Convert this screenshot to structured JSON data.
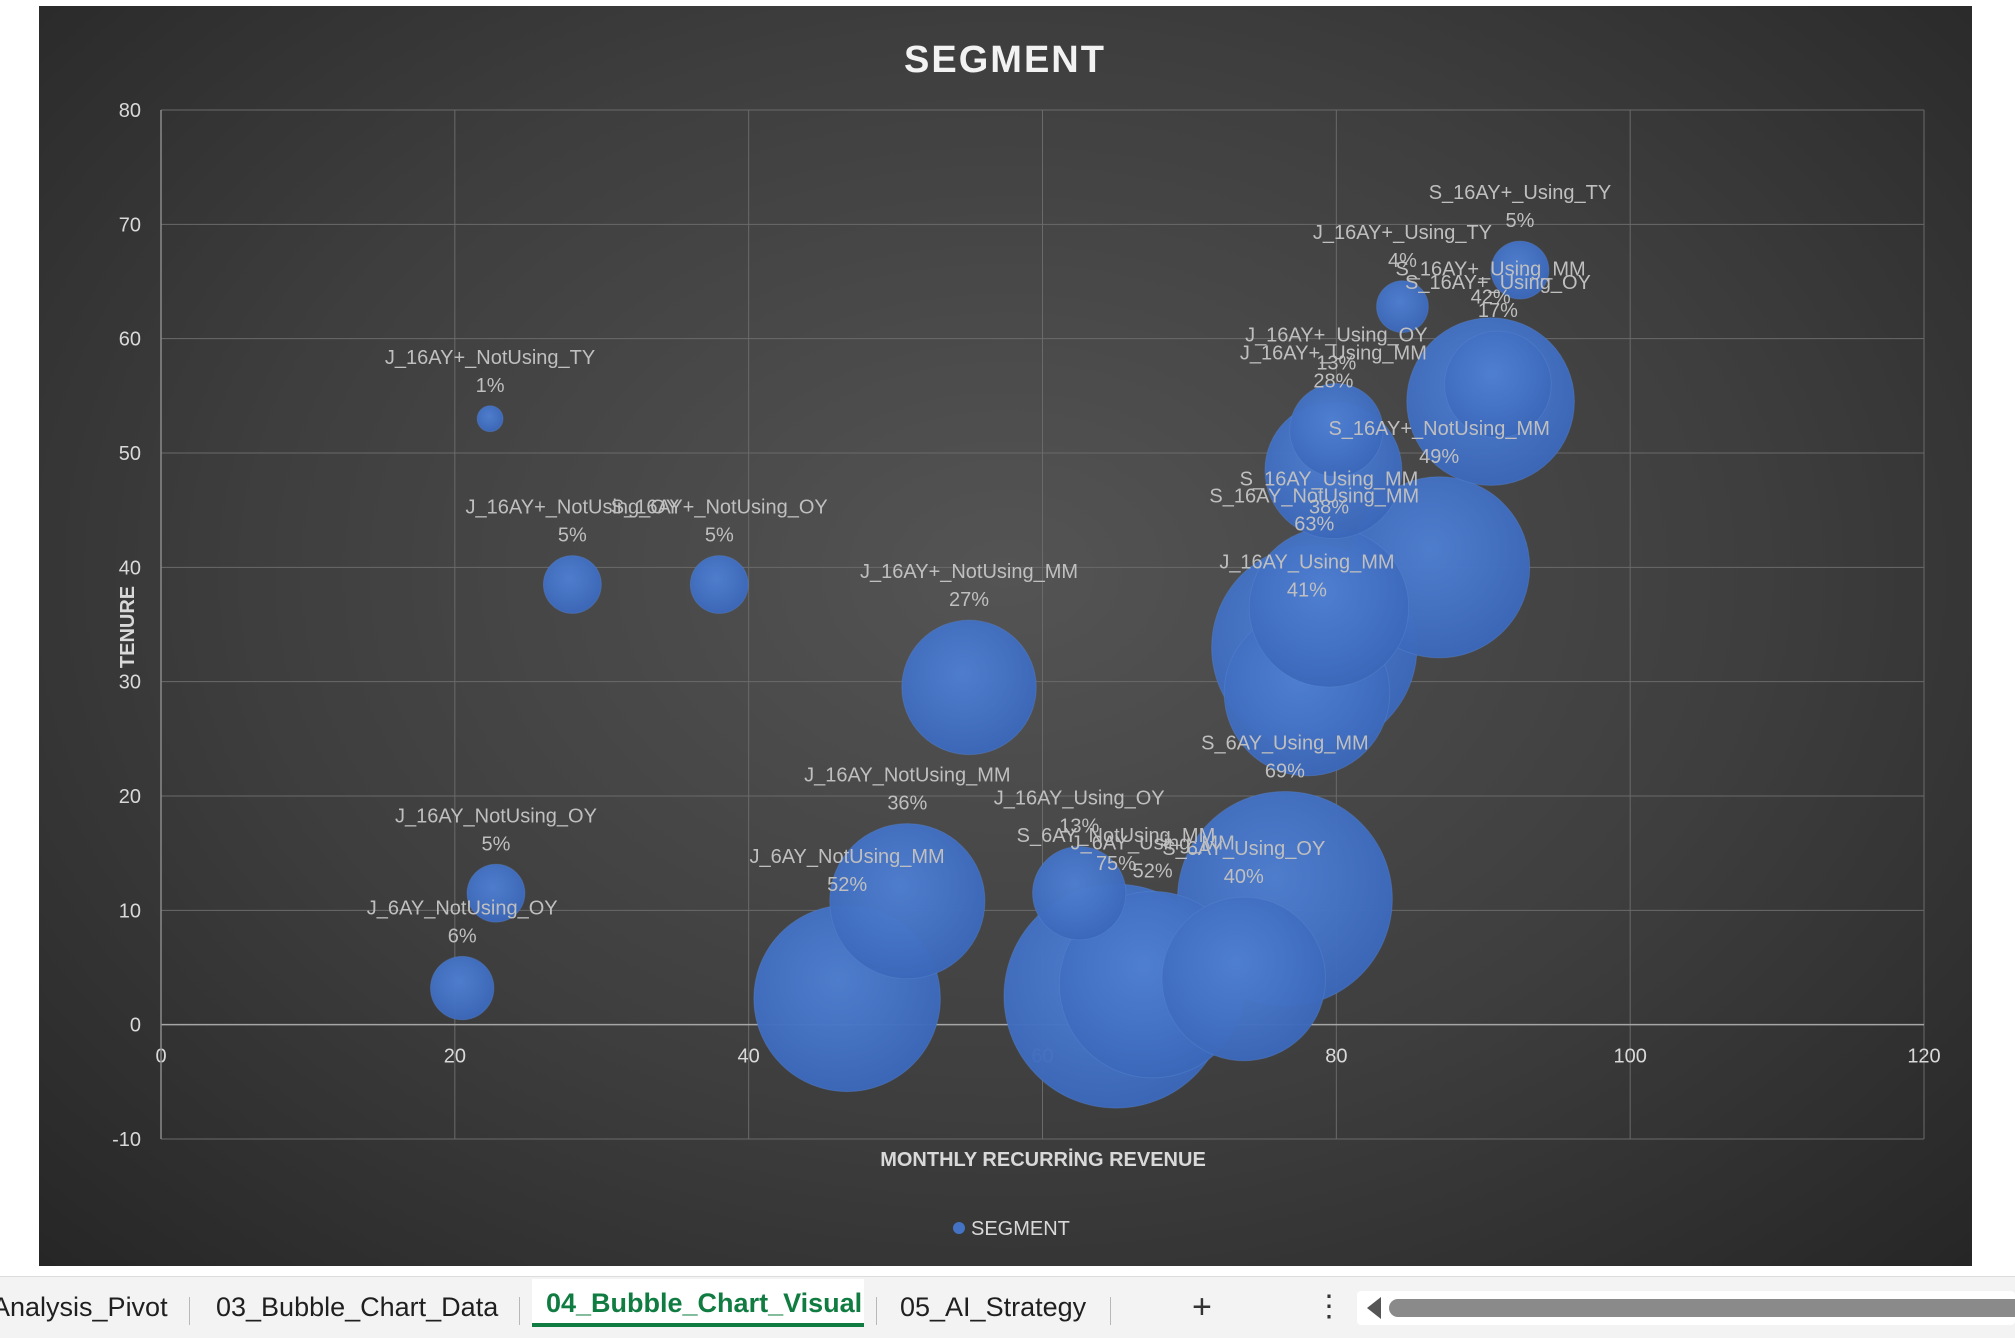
{
  "chart_data": {
    "type": "bubble",
    "title": "SEGMENT",
    "xlabel": "MONTHLY RECURRİNG REVENUE",
    "ylabel": "TENURE",
    "xlim": [
      0,
      120
    ],
    "ylim": [
      -10,
      80
    ],
    "x_ticks": [
      0,
      20,
      40,
      60,
      80,
      100,
      120
    ],
    "y_ticks": [
      -10,
      0,
      10,
      20,
      30,
      40,
      50,
      60,
      70,
      80
    ],
    "legend": [
      "SEGMENT"
    ],
    "legend_position": "bottom",
    "series_color": "#4472c4",
    "points": [
      {
        "label": "J_16AY+_NotUsing_TY",
        "pct": "1%",
        "x": 22.4,
        "y": 53,
        "size": 1
      },
      {
        "label": "J_16AY+_NotUsing_OY",
        "pct": "5%",
        "x": 28,
        "y": 38.5,
        "size": 5
      },
      {
        "label": "S_16AY+_NotUsing_OY",
        "pct": "5%",
        "x": 38,
        "y": 38.5,
        "size": 5
      },
      {
        "label": "J_16AY+_NotUsing_MM",
        "pct": "27%",
        "x": 55,
        "y": 29.5,
        "size": 27
      },
      {
        "label": "J_16AY_NotUsing_OY",
        "pct": "5%",
        "x": 22.8,
        "y": 11.5,
        "size": 5
      },
      {
        "label": "J_6AY_NotUsing_OY",
        "pct": "6%",
        "x": 20.5,
        "y": 3.2,
        "size": 6
      },
      {
        "label": "J_16AY_NotUsing_MM",
        "pct": "36%",
        "x": 50.8,
        "y": 10.8,
        "size": 36
      },
      {
        "label": "J_6AY_NotUsing_MM",
        "pct": "52%",
        "x": 46.7,
        "y": 2.3,
        "size": 52
      },
      {
        "label": "J_16AY_Using_OY",
        "pct": "13%",
        "x": 62.5,
        "y": 11.5,
        "size": 13
      },
      {
        "label": "S_6AY_NotUsing_MM",
        "pct": "75%",
        "x": 65,
        "y": 2.5,
        "size": 75
      },
      {
        "label": "J_6AY_Using_MM",
        "pct": "52%",
        "x": 67.5,
        "y": 3.5,
        "size": 52
      },
      {
        "label": "S_6AY_Using_MM",
        "pct": "69%",
        "x": 76.5,
        "y": 11,
        "size": 69
      },
      {
        "label": "S_6AY_Using_OY",
        "pct": "40%",
        "x": 73.7,
        "y": 4,
        "size": 40
      },
      {
        "label": "S_16AY_NotUsing_MM",
        "pct": "63%",
        "x": 78.5,
        "y": 33,
        "size": 63
      },
      {
        "label": "S_16AY_Using_MM",
        "pct": "38%",
        "x": 79.5,
        "y": 36.5,
        "size": 38
      },
      {
        "label": "J_16AY_Using_MM",
        "pct": "41%",
        "x": 78,
        "y": 29,
        "size": 41
      },
      {
        "label": "S_16AY+_NotUsing_MM",
        "pct": "49%",
        "x": 87,
        "y": 40,
        "size": 49
      },
      {
        "label": "J_16AY+_Using_MM",
        "pct": "28%",
        "x": 79.8,
        "y": 48.5,
        "size": 28
      },
      {
        "label": "S_16AY+_Using_MM",
        "pct": "42%",
        "x": 90.5,
        "y": 54.5,
        "size": 42
      },
      {
        "label": "J_16AY+_Using_OY",
        "pct": "13%",
        "x": 80,
        "y": 52,
        "size": 13
      },
      {
        "label": "J_16AY+_Using_TY",
        "pct": "4%",
        "x": 84.5,
        "y": 62.8,
        "size": 4
      },
      {
        "label": "S_16AY+_Using_OY",
        "pct": "17%",
        "x": 91,
        "y": 56,
        "size": 17
      },
      {
        "label": "S_16AY+_Using_TY",
        "pct": "5%",
        "x": 92.5,
        "y": 66,
        "size": 5
      }
    ]
  },
  "sheet_tabs": [
    {
      "label": "Analysis_Pivot",
      "active": false
    },
    {
      "label": "03_Bubble_Chart_Data",
      "active": false
    },
    {
      "label": "04_Bubble_Chart_Visual",
      "active": true
    },
    {
      "label": "05_AI_Strategy",
      "active": false
    }
  ],
  "tab_controls": {
    "add_symbol": "+",
    "more_symbol": "⋮"
  }
}
